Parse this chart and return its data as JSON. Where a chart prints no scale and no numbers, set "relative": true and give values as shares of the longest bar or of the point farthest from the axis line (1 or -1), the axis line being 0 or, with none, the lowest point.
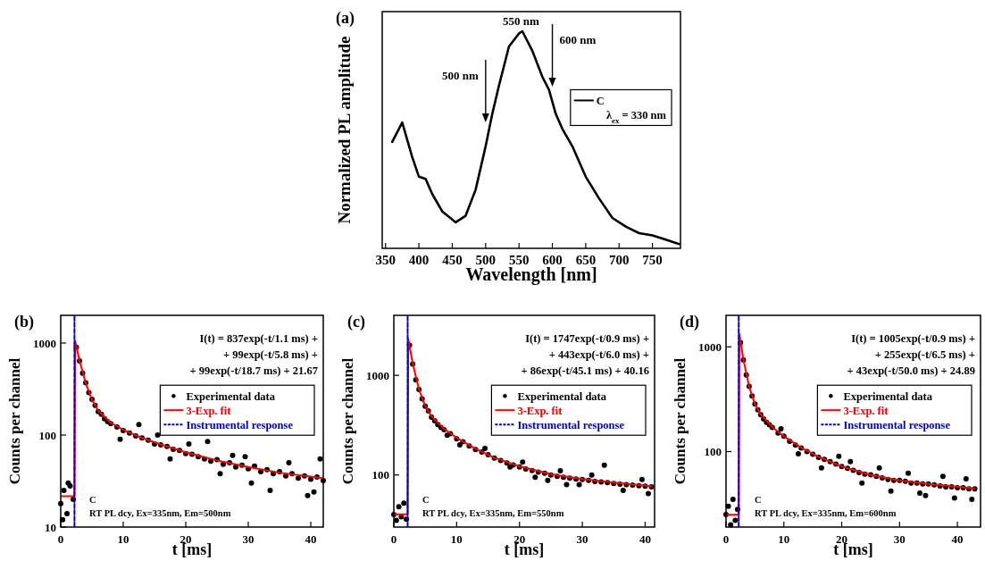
{
  "chart_data": [
    {
      "type": "line",
      "title": "(a)",
      "xlabel": "Wavelength [nm]",
      "ylabel": "Normalized PL amplitude",
      "relative": true,
      "xlim": [
        345,
        792
      ],
      "xticks": [
        350,
        400,
        450,
        500,
        550,
        600,
        650,
        700,
        750
      ],
      "legend": "right",
      "series": [
        {
          "name": "C",
          "color": "#000000",
          "x": [
            360,
            375,
            390,
            400,
            410,
            420,
            435,
            455,
            470,
            485,
            500,
            510,
            520,
            535,
            550,
            555,
            570,
            585,
            595,
            605,
            615,
            630,
            650,
            670,
            690,
            710,
            730,
            750,
            770,
            790
          ],
          "values": [
            0.49,
            0.58,
            0.42,
            0.33,
            0.32,
            0.25,
            0.17,
            0.12,
            0.15,
            0.27,
            0.47,
            0.62,
            0.75,
            0.93,
            0.99,
            1,
            0.91,
            0.79,
            0.73,
            0.62,
            0.55,
            0.47,
            0.33,
            0.23,
            0.14,
            0.1,
            0.07,
            0.06,
            0.04,
            0.02
          ]
        }
      ],
      "annotations": [
        {
          "text": "500 nm",
          "x": 500,
          "y": 0.58
        },
        {
          "text": "550 nm",
          "x": 553,
          "y": 1
        },
        {
          "text": "600 nm",
          "x": 600,
          "y": 0.745
        },
        "λ$_{ex}$ = 330 nm"
      ]
    },
    {
      "type": "scatter",
      "title": "(b)",
      "xlabel": "t [ms]",
      "ylabel": "Counts per channel",
      "log": "y",
      "xlim": [
        0,
        42
      ],
      "xticks": [
        0,
        10,
        20,
        30,
        40
      ],
      "ylim": [
        10,
        2000
      ],
      "yticks": [
        10,
        100,
        1000
      ],
      "legend": "right",
      "series": [
        {
          "name": "Experimental data",
          "marker": "circle",
          "color": "#000000",
          "x": [
            0,
            0.3,
            0.5,
            1,
            1.2,
            1.5,
            2,
            2.5,
            3,
            3.5,
            4,
            4.5,
            5,
            5.5,
            6,
            6.5,
            7,
            7.5,
            8,
            9,
            9.5,
            10,
            11,
            12,
            12.5,
            13,
            14,
            15,
            15.5,
            16,
            17,
            17.5,
            18,
            19,
            20,
            20.5,
            21,
            22,
            23,
            23.5,
            24,
            25,
            25.5,
            26,
            27,
            27.5,
            28,
            29,
            29.5,
            30,
            30.5,
            31,
            32,
            33,
            33.5,
            34,
            35,
            36,
            36.5,
            37,
            38,
            39,
            39.5,
            40,
            40.5,
            41,
            41.5,
            42
          ],
          "values": [
            18,
            12,
            25,
            14,
            30,
            28,
            20,
            900,
            640,
            470,
            370,
            290,
            245,
            210,
            180,
            168,
            150,
            140,
            133,
            122,
            90,
            112,
            105,
            98,
            130,
            93,
            88,
            80,
            100,
            78,
            75,
            55,
            70,
            68,
            63,
            80,
            62,
            58,
            55,
            85,
            52,
            54,
            38,
            48,
            50,
            60,
            45,
            47,
            58,
            43,
            30,
            46,
            40,
            42,
            25,
            38,
            40,
            36,
            50,
            38,
            34,
            36,
            22,
            33,
            24,
            35,
            55,
            32
          ]
        },
        {
          "name": "3-Exp. fit",
          "type": "line",
          "color": "#ff0000",
          "x": [
            0,
            2.2,
            2.3,
            3,
            4,
            5,
            6,
            8,
            10,
            13,
            16,
            20,
            25,
            30,
            35,
            42
          ],
          "values": [
            21.67,
            21.67,
            1057,
            648,
            365,
            242,
            184,
            136,
            114,
            93,
            79,
            65,
            53,
            45,
            39,
            34
          ]
        },
        {
          "name": "Instrumental response",
          "type": "line",
          "line_style": "dashed",
          "color": "#0000cc",
          "x": [
            2.2,
            2.2
          ],
          "values": [
            10,
            2000
          ]
        }
      ],
      "annotations": [
        "I(t) = 837exp(-t/1.1 ms) +",
        "+ 99exp(-t/5.8 ms) +",
        "+ 99exp(-t/18.7 ms) + 21.67",
        "C",
        "RT PL dcy, Ex=335nm, Em=500nm"
      ]
    },
    {
      "type": "scatter",
      "title": "(c)",
      "xlabel": "t [ms]",
      "ylabel": "Counts per channel",
      "log": "y",
      "xlim": [
        0,
        41.5
      ],
      "xticks": [
        0,
        10,
        20,
        30,
        40
      ],
      "ylim": [
        30,
        4000
      ],
      "yticks": [
        100,
        1000
      ],
      "legend": "right",
      "series": [
        {
          "name": "Experimental data",
          "marker": "circle",
          "color": "#000000",
          "x": [
            0,
            0.4,
            0.8,
            1.2,
            1.6,
            2,
            2.5,
            3,
            3.5,
            4,
            4.5,
            5,
            5.5,
            6,
            6.5,
            7,
            7.5,
            8,
            8.5,
            9,
            10,
            10.5,
            11,
            12,
            13,
            14,
            14.5,
            15,
            16,
            17,
            18,
            18.5,
            19,
            20,
            20.5,
            21,
            22,
            22.5,
            23,
            24,
            24.5,
            25,
            26,
            26.5,
            27,
            27.5,
            28,
            29,
            29.5,
            30,
            31,
            31.5,
            32,
            33,
            33.5,
            34,
            35,
            36,
            36.5,
            37,
            38,
            39,
            39.5,
            40,
            40.5,
            41
          ],
          "values": [
            40,
            35,
            48,
            38,
            52,
            36,
            2000,
            1300,
            900,
            720,
            580,
            490,
            440,
            380,
            350,
            320,
            300,
            285,
            250,
            260,
            230,
            200,
            215,
            195,
            180,
            170,
            185,
            160,
            148,
            140,
            132,
            120,
            126,
            120,
            135,
            115,
            111,
            95,
            107,
            104,
            88,
            100,
            97,
            110,
            95,
            80,
            93,
            91,
            80,
            90,
            88,
            100,
            86,
            85,
            125,
            84,
            82,
            81,
            70,
            80,
            79,
            78,
            90,
            77,
            65,
            76
          ]
        },
        {
          "name": "3-Exp. fit",
          "type": "line",
          "color": "#ff0000",
          "x": [
            0,
            2.2,
            2.3,
            3,
            4,
            5,
            6,
            8,
            10,
            13,
            16,
            20,
            25,
            30,
            35,
            41
          ],
          "values": [
            40.16,
            40.16,
            2316,
            1321,
            721,
            491,
            387,
            290,
            236,
            183,
            149,
            122,
            102,
            91,
            84,
            77
          ]
        },
        {
          "name": "Instrumental response",
          "type": "line",
          "line_style": "dashed",
          "color": "#0000cc",
          "x": [
            2.2,
            2.2
          ],
          "values": [
            30,
            4000
          ]
        }
      ],
      "annotations": [
        "I(t) = 1747exp(-t/0.9 ms) +",
        "+ 443exp(-t/6.0 ms) +",
        "+ 86exp(-t/45.1 ms) + 40.16",
        "C",
        "RT PL dcy, Ex=335nm, Em=550nm"
      ]
    },
    {
      "type": "scatter",
      "title": "(d)",
      "xlabel": "t [ms]",
      "ylabel": "Counts per channel",
      "log": "y",
      "xlim": [
        0,
        44
      ],
      "xticks": [
        0,
        10,
        20,
        30,
        40
      ],
      "ylim": [
        19,
        2000
      ],
      "yticks": [
        100,
        1000
      ],
      "legend": "right",
      "series": [
        {
          "name": "Experimental data",
          "marker": "circle",
          "color": "#000000",
          "x": [
            0,
            0.4,
            0.8,
            1.2,
            1.6,
            2,
            2.5,
            3,
            3.5,
            4,
            4.5,
            5,
            5.5,
            6,
            6.5,
            7,
            7.5,
            8,
            9,
            9.5,
            10,
            11,
            12,
            12.5,
            13,
            14,
            15,
            16,
            16.5,
            17,
            18,
            19,
            19.5,
            20,
            21,
            21.5,
            22,
            23,
            23.5,
            24,
            25,
            26,
            26.5,
            27,
            28,
            28.5,
            29,
            30,
            31,
            31.5,
            32,
            33,
            33.5,
            34,
            34.5,
            35,
            36,
            37,
            37.5,
            38,
            39,
            39.5,
            40,
            41,
            41.5,
            42,
            42.5,
            43
          ],
          "values": [
            25,
            30,
            20,
            35,
            22,
            28,
            1100,
            750,
            540,
            420,
            340,
            285,
            250,
            225,
            205,
            190,
            180,
            170,
            150,
            165,
            140,
            125,
            115,
            95,
            108,
            100,
            94,
            88,
            70,
            84,
            80,
            76,
            90,
            72,
            69,
            80,
            66,
            63,
            50,
            61,
            60,
            58,
            70,
            56,
            54,
            42,
            53,
            53,
            52,
            62,
            50,
            50,
            40,
            49,
            38,
            49,
            48,
            47,
            58,
            46,
            46,
            36,
            45,
            45,
            55,
            44,
            35,
            44
          ]
        },
        {
          "name": "3-Exp. fit",
          "type": "line",
          "color": "#ff0000",
          "x": [
            0,
            2.2,
            2.3,
            3,
            4,
            5,
            6,
            8,
            10,
            13,
            16,
            20,
            25,
            30,
            35,
            43
          ],
          "values": [
            24.89,
            24.89,
            1328,
            758,
            415,
            284,
            226,
            171,
            140,
            109,
            89,
            72,
            60,
            53,
            49,
            44.5
          ]
        },
        {
          "name": "Instrumental response",
          "type": "line",
          "line_style": "dashed",
          "color": "#0000cc",
          "x": [
            2.2,
            2.2
          ],
          "values": [
            19,
            2000
          ]
        }
      ],
      "annotations": [
        "I(t) = 1005exp(-t/0.9 ms) +",
        "+ 255exp(-t/6.5 ms) +",
        "+ 43exp(-t/50.0 ms) + 24.89",
        "C",
        "RT PL dcy, Ex=335nm, Em=600nm"
      ]
    }
  ]
}
